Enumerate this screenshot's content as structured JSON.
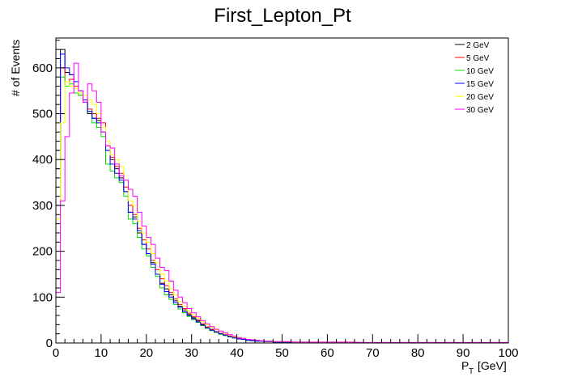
{
  "chart_data": {
    "type": "line",
    "title": "First_Lepton_Pt",
    "xlabel_main": "P",
    "xlabel_sub": "T",
    "xlabel_unit": "[GeV]",
    "ylabel": "# of Events",
    "xlim": [
      0,
      100
    ],
    "ylim": [
      0,
      665
    ],
    "x_ticks": [
      0,
      10,
      20,
      30,
      40,
      50,
      60,
      70,
      80,
      90,
      100
    ],
    "y_ticks": [
      0,
      100,
      200,
      300,
      400,
      500,
      600
    ],
    "grid": false,
    "legend_position": "top-right",
    "bin_width": 1,
    "series": [
      {
        "name": "2 GeV",
        "color": "#000000",
        "values": [
          420,
          640,
          590,
          585,
          560,
          545,
          530,
          500,
          490,
          485,
          470,
          420,
          400,
          380,
          360,
          330,
          285,
          275,
          240,
          215,
          195,
          175,
          150,
          130,
          118,
          105,
          92,
          80,
          72,
          62,
          55,
          48,
          40,
          33,
          28,
          24,
          20,
          17,
          14,
          11,
          9,
          8,
          6,
          5,
          4,
          4,
          3,
          3,
          2,
          2,
          2,
          2,
          1,
          1,
          1,
          1,
          1,
          1,
          1,
          1,
          1,
          1,
          1,
          1,
          1,
          1,
          1,
          0,
          0,
          0,
          0,
          0,
          0,
          0,
          0,
          0,
          0,
          0,
          0,
          0,
          0,
          0,
          0,
          0,
          0,
          0,
          0,
          0,
          0,
          0,
          0,
          0,
          0,
          0,
          0,
          0,
          0,
          0,
          0,
          0
        ]
      },
      {
        "name": "5 GeV",
        "color": "#ff0000",
        "values": [
          380,
          600,
          560,
          575,
          560,
          540,
          525,
          510,
          500,
          490,
          480,
          430,
          405,
          385,
          370,
          340,
          300,
          280,
          250,
          225,
          205,
          180,
          160,
          140,
          125,
          110,
          96,
          84,
          75,
          65,
          57,
          50,
          42,
          35,
          30,
          25,
          21,
          18,
          15,
          12,
          10,
          9,
          7,
          6,
          5,
          4,
          4,
          3,
          3,
          2,
          2,
          2,
          2,
          1,
          1,
          1,
          1,
          1,
          1,
          1,
          1,
          1,
          1,
          1,
          1,
          1,
          1,
          1,
          0,
          0,
          0,
          0,
          0,
          0,
          0,
          0,
          0,
          0,
          0,
          0,
          0,
          0,
          0,
          0,
          0,
          0,
          0,
          0,
          0,
          0,
          0,
          0,
          0,
          0,
          0,
          0,
          0,
          0,
          0,
          0
        ]
      },
      {
        "name": "10 GeV",
        "color": "#00dd00",
        "values": [
          360,
          580,
          560,
          565,
          545,
          540,
          525,
          505,
          480,
          470,
          450,
          390,
          375,
          360,
          350,
          320,
          270,
          260,
          230,
          205,
          190,
          165,
          145,
          120,
          105,
          95,
          84,
          74,
          66,
          58,
          51,
          45,
          38,
          32,
          27,
          23,
          19,
          16,
          13,
          11,
          9,
          8,
          6,
          5,
          4,
          4,
          3,
          3,
          2,
          2,
          2,
          2,
          1,
          1,
          1,
          1,
          1,
          1,
          1,
          1,
          1,
          1,
          1,
          1,
          1,
          1,
          1,
          1,
          0,
          0,
          0,
          0,
          0,
          0,
          0,
          0,
          0,
          0,
          0,
          0,
          0,
          0,
          0,
          0,
          0,
          0,
          0,
          0,
          0,
          0,
          0,
          0,
          0,
          0,
          0,
          0,
          0,
          0,
          0,
          0
        ]
      },
      {
        "name": "15 GeV",
        "color": "#0000ff",
        "values": [
          300,
          630,
          600,
          585,
          570,
          550,
          530,
          505,
          490,
          480,
          460,
          420,
          390,
          370,
          355,
          330,
          285,
          270,
          245,
          215,
          195,
          172,
          150,
          128,
          112,
          100,
          88,
          78,
          68,
          60,
          53,
          46,
          39,
          33,
          28,
          24,
          20,
          17,
          14,
          11,
          9,
          8,
          6,
          5,
          4,
          4,
          3,
          3,
          2,
          2,
          2,
          2,
          1,
          1,
          1,
          1,
          1,
          1,
          1,
          1,
          1,
          1,
          1,
          1,
          1,
          1,
          1,
          0,
          0,
          0,
          0,
          0,
          0,
          0,
          0,
          0,
          0,
          0,
          0,
          0,
          0,
          0,
          0,
          0,
          0,
          0,
          0,
          0,
          0,
          0,
          0,
          0,
          0,
          0,
          0,
          0,
          0,
          0,
          0,
          0
        ]
      },
      {
        "name": "20 GeV",
        "color": "#ffff00",
        "values": [
          270,
          480,
          570,
          560,
          555,
          545,
          540,
          530,
          520,
          500,
          470,
          440,
          410,
          400,
          385,
          355,
          310,
          300,
          265,
          240,
          220,
          195,
          175,
          150,
          135,
          118,
          104,
          90,
          80,
          70,
          62,
          54,
          46,
          40,
          34,
          29,
          25,
          21,
          17,
          14,
          12,
          10,
          8,
          7,
          6,
          5,
          4,
          4,
          3,
          3,
          3,
          3,
          2,
          2,
          2,
          2,
          2,
          2,
          2,
          2,
          2,
          2,
          2,
          2,
          2,
          2,
          1,
          1,
          1,
          1,
          1,
          1,
          1,
          1,
          1,
          1,
          1,
          1,
          1,
          1,
          1,
          1,
          1,
          1,
          1,
          1,
          1,
          1,
          1,
          1,
          1,
          1,
          1,
          1,
          1,
          1,
          1,
          1,
          1,
          1
        ]
      },
      {
        "name": "30 GeV",
        "color": "#ff00ff",
        "values": [
          110,
          310,
          450,
          545,
          610,
          550,
          525,
          565,
          550,
          525,
          460,
          430,
          425,
          390,
          365,
          355,
          335,
          320,
          285,
          255,
          230,
          215,
          185,
          165,
          158,
          135,
          115,
          100,
          88,
          75,
          66,
          57,
          49,
          42,
          36,
          30,
          26,
          22,
          18,
          15,
          12,
          10,
          8,
          7,
          6,
          5,
          4,
          4,
          3,
          3,
          3,
          3,
          2,
          2,
          2,
          2,
          2,
          2,
          2,
          2,
          2,
          2,
          2,
          2,
          2,
          2,
          1,
          1,
          1,
          1,
          1,
          1,
          1,
          1,
          1,
          1,
          1,
          1,
          1,
          1,
          1,
          1,
          1,
          1,
          1,
          1,
          1,
          1,
          1,
          1,
          1,
          1,
          1,
          1,
          1,
          1,
          1,
          1,
          1,
          1
        ]
      }
    ]
  }
}
